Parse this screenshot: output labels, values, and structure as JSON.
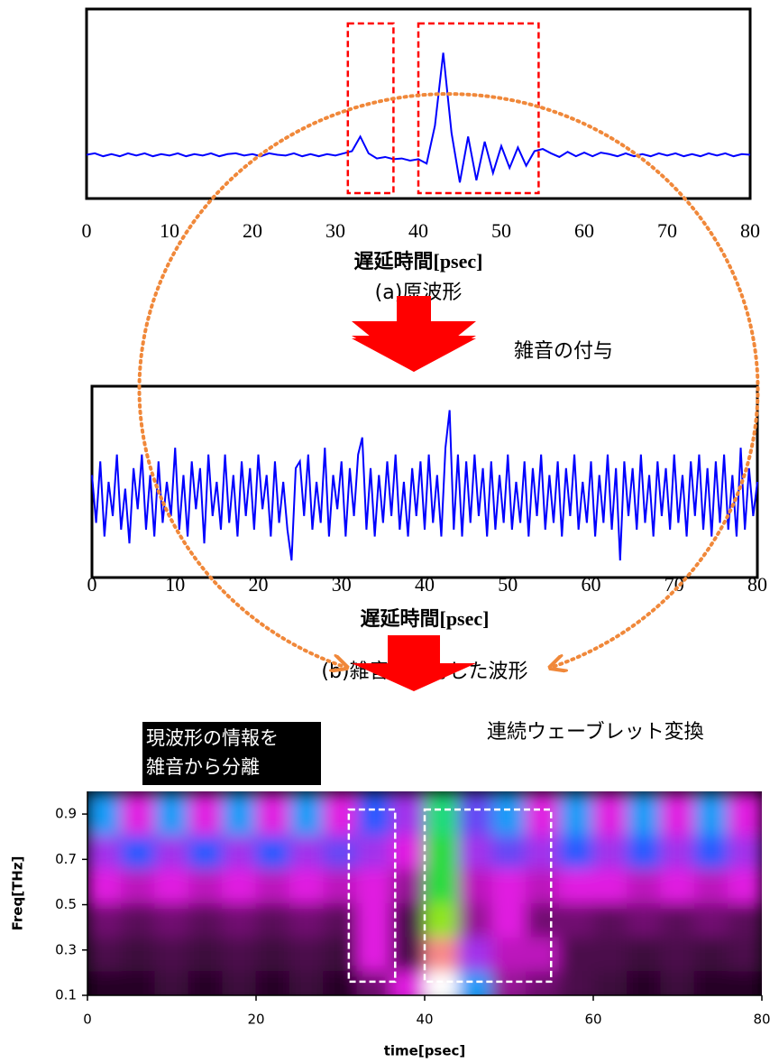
{
  "chart_data": [
    {
      "type": "line",
      "color": "#0000ff",
      "xlabel": "遅延時間[psec]",
      "caption": "(a)原波形",
      "xlim": [
        0,
        80
      ],
      "xticks": [
        0,
        10,
        20,
        30,
        40,
        50,
        60,
        70,
        80
      ],
      "ylim": [
        -0.6,
        2.0
      ],
      "regions": [
        {
          "x": [
            31.5,
            37
          ]
        },
        {
          "x": [
            40,
            54.5
          ]
        }
      ],
      "region_color": "#ff0000",
      "x": [
        0,
        1,
        2,
        3,
        4,
        5,
        6,
        7,
        8,
        9,
        10,
        11,
        12,
        13,
        14,
        15,
        16,
        17,
        18,
        19,
        20,
        21,
        22,
        23,
        24,
        25,
        26,
        27,
        28,
        29,
        30,
        31,
        32,
        33,
        34,
        35,
        36,
        37,
        38,
        39,
        40,
        41,
        42,
        43,
        44,
        45,
        46,
        47,
        48,
        49,
        50,
        51,
        52,
        53,
        54,
        55,
        56,
        57,
        58,
        59,
        60,
        61,
        62,
        63,
        64,
        65,
        66,
        67,
        68,
        69,
        70,
        71,
        72,
        73,
        74,
        75,
        76,
        77,
        78,
        79,
        80
      ],
      "values": [
        0,
        0.02,
        -0.02,
        0.01,
        -0.02,
        0.02,
        -0.01,
        0.02,
        -0.02,
        0.01,
        -0.01,
        0.02,
        -0.02,
        0.01,
        -0.01,
        0.02,
        -0.02,
        0.01,
        0.02,
        -0.01,
        0.01,
        -0.02,
        0.02,
        0,
        -0.01,
        0.02,
        -0.02,
        0.01,
        -0.02,
        0.01,
        -0.01,
        0.02,
        0.05,
        0.25,
        0.02,
        -0.05,
        -0.03,
        -0.06,
        -0.05,
        -0.08,
        -0.06,
        -0.12,
        0.4,
        1.4,
        0.3,
        -0.38,
        0.25,
        -0.35,
        0.18,
        -0.25,
        0.12,
        -0.18,
        0.1,
        -0.15,
        0.05,
        0.08,
        0.02,
        -0.03,
        0.04,
        -0.02,
        0.03,
        -0.02,
        0.03,
        0.01,
        -0.02,
        0.02,
        -0.02,
        0.01,
        -0.02,
        0.02,
        -0.01,
        0.02,
        -0.02,
        0.01,
        -0.02,
        0.02,
        -0.01,
        0.02,
        -0.02,
        0.01,
        0
      ]
    },
    {
      "type": "line",
      "color": "#0000ff",
      "xlabel": "遅延時間[psec]",
      "caption": "(b)雑音を付与した波形",
      "xlim": [
        0,
        80
      ],
      "xticks": [
        0,
        10,
        20,
        30,
        40,
        50,
        60,
        70,
        80
      ],
      "ylim": [
        -1.2,
        1.6
      ],
      "x": [
        0,
        0.5,
        1,
        1.5,
        2,
        2.5,
        3,
        3.5,
        4,
        4.5,
        5,
        5.5,
        6,
        6.5,
        7,
        7.5,
        8,
        8.5,
        9,
        9.5,
        10,
        10.5,
        11,
        11.5,
        12,
        12.5,
        13,
        13.5,
        14,
        14.5,
        15,
        15.5,
        16,
        16.5,
        17,
        17.5,
        18,
        18.5,
        19,
        19.5,
        20,
        20.5,
        21,
        21.5,
        22,
        22.5,
        23,
        23.5,
        24,
        24.5,
        25,
        25.5,
        26,
        26.5,
        27,
        27.5,
        28,
        28.5,
        29,
        29.5,
        30,
        30.5,
        31,
        31.5,
        32,
        32.5,
        33,
        33.5,
        34,
        34.5,
        35,
        35.5,
        36,
        36.5,
        37,
        37.5,
        38,
        38.5,
        39,
        39.5,
        40,
        40.5,
        41,
        41.5,
        42,
        42.5,
        43,
        43.5,
        44,
        44.5,
        45,
        45.5,
        46,
        46.5,
        47,
        47.5,
        48,
        48.5,
        49,
        49.5,
        50,
        50.5,
        51,
        51.5,
        52,
        52.5,
        53,
        53.5,
        54,
        54.5,
        55,
        55.5,
        56,
        56.5,
        57,
        57.5,
        58,
        58.5,
        59,
        59.5,
        60,
        60.5,
        61,
        61.5,
        62,
        62.5,
        63,
        63.5,
        64,
        64.5,
        65,
        65.5,
        66,
        66.5,
        67,
        67.5,
        68,
        68.5,
        69,
        69.5,
        70,
        70.5,
        71,
        71.5,
        72,
        72.5,
        73,
        73.5,
        74,
        74.5,
        75,
        75.5,
        76,
        76.5,
        77,
        77.5,
        78,
        78.5,
        79,
        79.5,
        80
      ],
      "values": [
        0.3,
        -0.4,
        0.5,
        -0.6,
        0.2,
        -0.3,
        0.6,
        -0.5,
        0.1,
        -0.7,
        0.4,
        -0.2,
        0.6,
        -0.5,
        0.3,
        -0.6,
        0.5,
        -0.4,
        0.2,
        -0.3,
        0.7,
        -0.5,
        0.3,
        -0.6,
        0.5,
        -0.2,
        0.4,
        -0.7,
        0.6,
        -0.3,
        0.2,
        -0.5,
        0.6,
        -0.4,
        0.3,
        -0.6,
        0.5,
        -0.3,
        0.4,
        -0.5,
        0.6,
        -0.2,
        0.3,
        -0.6,
        0.5,
        -0.4,
        0.2,
        -0.5,
        -0.95,
        0.4,
        0.5,
        -0.3,
        0.6,
        -0.5,
        0.2,
        -0.4,
        0.7,
        -0.6,
        0.3,
        -0.2,
        0.5,
        -0.6,
        0.4,
        -0.3,
        0.6,
        0.85,
        -0.5,
        0.4,
        -0.6,
        0.3,
        -0.4,
        0.5,
        -0.3,
        0.6,
        -0.5,
        0.2,
        -0.6,
        0.4,
        -0.3,
        0.5,
        -0.5,
        0.6,
        -0.4,
        0.3,
        -0.6,
        0.7,
        1.25,
        -0.5,
        0.6,
        -0.6,
        0.5,
        -0.4,
        0.6,
        -0.3,
        0.4,
        -0.6,
        0.5,
        -0.5,
        0.3,
        -0.4,
        0.6,
        -0.5,
        0.2,
        -0.4,
        0.5,
        -0.6,
        0.4,
        -0.3,
        0.6,
        -0.5,
        0.3,
        -0.4,
        0.5,
        -0.6,
        0.4,
        -0.3,
        0.6,
        -0.5,
        0.2,
        -0.4,
        0.5,
        -0.6,
        0.3,
        -0.4,
        0.6,
        -0.5,
        0.4,
        -0.95,
        0.5,
        -0.3,
        0.4,
        -0.5,
        0.6,
        -0.4,
        0.3,
        -0.6,
        0.5,
        -0.3,
        0.4,
        -0.5,
        0.6,
        -0.4,
        0.3,
        -0.6,
        0.5,
        -0.3,
        0.6,
        -0.5,
        0.4,
        -0.6,
        0.5,
        -0.4,
        0.6,
        -0.5,
        0.3,
        -0.6,
        0.7,
        -0.5,
        0.4,
        -0.3,
        0.2
      ]
    },
    {
      "type": "heatmap",
      "xlabel": "time[psec]",
      "ylabel": "Freq[THz]",
      "xlim": [
        0,
        80
      ],
      "xticks": [
        0,
        20,
        40,
        60,
        80
      ],
      "ylim": [
        0.1,
        1.0
      ],
      "yticks": [
        0.1,
        0.3,
        0.5,
        0.7,
        0.9
      ],
      "annotation": [
        "現波形の情報を",
        "雑音から分離"
      ],
      "region_color": "#ffffff",
      "regions": [
        {
          "x": [
            31,
            36.5
          ],
          "y": [
            0.16,
            0.92
          ]
        },
        {
          "x": [
            40,
            55
          ],
          "y": [
            0.16,
            0.92
          ]
        }
      ],
      "x": [
        2,
        6,
        10,
        14,
        18,
        22,
        26,
        30,
        34,
        38,
        42,
        46,
        50,
        54,
        58,
        62,
        66,
        70,
        74,
        78
      ],
      "y": [
        0.15,
        0.3,
        0.45,
        0.6,
        0.75,
        0.9
      ],
      "z": [
        [
          0.05,
          0.05,
          0.08,
          0.05,
          0.08,
          0.05,
          0.08,
          0.05,
          0.15,
          0.3,
          1.0,
          0.5,
          0.2,
          0.15,
          0.1,
          0.08,
          0.05,
          0.08,
          0.05,
          0.05
        ],
        [
          0.1,
          0.08,
          0.1,
          0.08,
          0.1,
          0.08,
          0.1,
          0.08,
          0.3,
          0.1,
          0.95,
          0.35,
          0.25,
          0.25,
          0.1,
          0.1,
          0.08,
          0.1,
          0.08,
          0.1
        ],
        [
          0.15,
          0.12,
          0.15,
          0.12,
          0.15,
          0.12,
          0.15,
          0.12,
          0.3,
          0.1,
          0.75,
          0.2,
          0.3,
          0.15,
          0.15,
          0.12,
          0.15,
          0.12,
          0.15,
          0.12
        ],
        [
          0.3,
          0.25,
          0.3,
          0.25,
          0.3,
          0.25,
          0.3,
          0.25,
          0.3,
          0.2,
          0.7,
          0.25,
          0.3,
          0.25,
          0.3,
          0.3,
          0.25,
          0.3,
          0.25,
          0.3
        ],
        [
          0.35,
          0.45,
          0.35,
          0.45,
          0.35,
          0.45,
          0.35,
          0.4,
          0.35,
          0.3,
          0.7,
          0.35,
          0.4,
          0.35,
          0.45,
          0.35,
          0.45,
          0.35,
          0.45,
          0.35
        ],
        [
          0.5,
          0.3,
          0.5,
          0.3,
          0.5,
          0.3,
          0.5,
          0.3,
          0.45,
          0.35,
          0.65,
          0.4,
          0.5,
          0.3,
          0.5,
          0.3,
          0.5,
          0.3,
          0.5,
          0.3
        ]
      ]
    }
  ],
  "annotations": [
    "雑音の付与",
    "連続ウェーブレット変換"
  ]
}
